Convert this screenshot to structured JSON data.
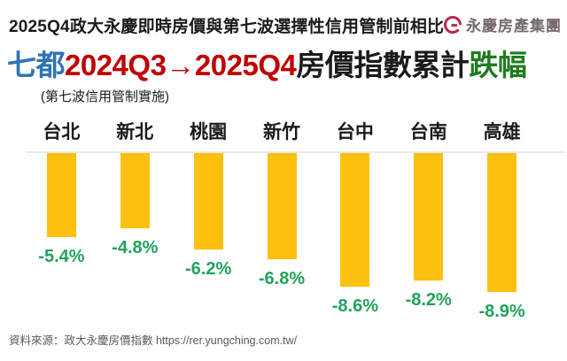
{
  "header": {
    "title": "2025Q4政大永慶即時房價與第七波選擇性信用管制前相比",
    "brand": {
      "icon": "yungching-logo-icon",
      "name": "永慶房產集團"
    }
  },
  "main_title": {
    "scope": "七都",
    "period": "2024Q3→2025Q4",
    "middle": "房價指數累計",
    "highlight": "跌幅",
    "subtitle": "(第七波信用管制實施)"
  },
  "chart_data": {
    "type": "bar",
    "title": "七都2024Q3→2025Q4房價指數累計跌幅",
    "categories": [
      "台北",
      "新北",
      "桃園",
      "新竹",
      "台中",
      "台南",
      "高雄"
    ],
    "values": [
      -5.4,
      -4.8,
      -6.2,
      -6.8,
      -8.6,
      -8.2,
      -8.9
    ],
    "value_labels": [
      "-5.4%",
      "-4.8%",
      "-6.2%",
      "-6.8%",
      "-8.6%",
      "-8.2%",
      "-8.9%"
    ],
    "unit": "%",
    "xlabel": "",
    "ylabel": "",
    "ylim": [
      -10,
      0
    ],
    "baseline_value": 0,
    "bars_extend": "downward",
    "grid": false,
    "legend": false,
    "bar_color": "#FEC00F",
    "value_label_color": "#21A25C"
  },
  "footer": {
    "source": "資料來源：政大永慶房價指數 https://rer.yungching.com.tw/"
  },
  "colors": {
    "scope_blue": "#2E74B5",
    "period_red": "#C00000",
    "title_black": "#1A1A1A",
    "drop_green": "#1E7C1E",
    "bar_yellow": "#FEC00F",
    "value_green": "#21A25C",
    "baseline_gray": "#EAEAEA",
    "source_gray": "#595959",
    "logo_crimson": "#B72B4E",
    "logo_text_gray": "#766868"
  }
}
